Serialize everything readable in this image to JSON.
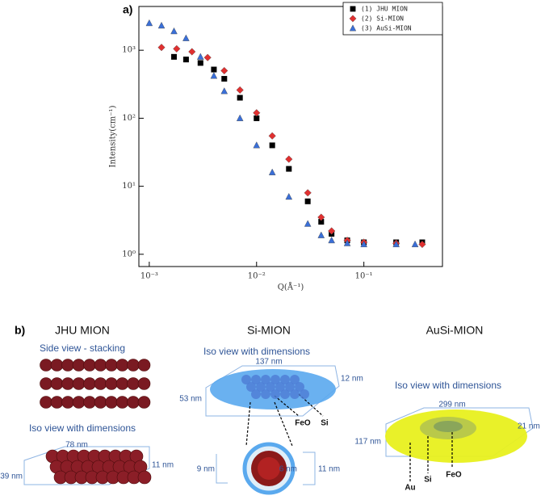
{
  "panel_labels": [
    "a)",
    "b)"
  ],
  "chart_data": {
    "type": "scatter",
    "xlabel": "Q(Å⁻¹)",
    "ylabel": "Intensity(cm⁻¹)",
    "xscale": "log",
    "yscale": "log",
    "xlim": [
      0.0008,
      0.54
    ],
    "ylim": [
      0.66,
      4400
    ],
    "xticks": [
      {
        "value": 0.001,
        "label": "10⁻³"
      },
      {
        "value": 0.01,
        "label": "10⁻²"
      },
      {
        "value": 0.1,
        "label": "10⁻¹"
      }
    ],
    "yticks": [
      {
        "value": 1,
        "label": "10⁰"
      },
      {
        "value": 10,
        "label": "10¹"
      },
      {
        "value": 100,
        "label": "10²"
      },
      {
        "value": 1000,
        "label": "10³"
      }
    ],
    "legend": "upper right",
    "series": [
      {
        "name": "(1) JHU MION",
        "color": "#000000",
        "marker": "square",
        "x": [
          0.0017,
          0.0022,
          0.003,
          0.004,
          0.005,
          0.007,
          0.01,
          0.014,
          0.02,
          0.03,
          0.04,
          0.05,
          0.07,
          0.1,
          0.2,
          0.35
        ],
        "values": [
          800,
          730,
          650,
          520,
          380,
          200,
          100,
          40,
          18,
          6,
          3,
          2,
          1.6,
          1.5,
          1.5,
          1.5
        ]
      },
      {
        "name": "(2) Si-MION",
        "color": "#e03030",
        "marker": "diamond",
        "x": [
          0.0013,
          0.0018,
          0.0025,
          0.0035,
          0.005,
          0.007,
          0.01,
          0.014,
          0.02,
          0.03,
          0.04,
          0.05,
          0.07,
          0.1,
          0.2,
          0.35
        ],
        "values": [
          1100,
          1050,
          950,
          780,
          500,
          260,
          120,
          55,
          25,
          8,
          3.5,
          2.2,
          1.6,
          1.5,
          1.45,
          1.4
        ]
      },
      {
        "name": "(3) AuSi-MION",
        "color": "#3a6fd8",
        "marker": "triangle",
        "x": [
          0.001,
          0.0013,
          0.0017,
          0.0022,
          0.003,
          0.004,
          0.005,
          0.007,
          0.01,
          0.014,
          0.02,
          0.03,
          0.04,
          0.05,
          0.07,
          0.1,
          0.2,
          0.3
        ],
        "values": [
          2500,
          2300,
          1900,
          1500,
          800,
          420,
          250,
          100,
          40,
          16,
          7,
          2.8,
          1.9,
          1.6,
          1.45,
          1.4,
          1.4,
          1.4
        ]
      }
    ]
  },
  "diagrams": [
    {
      "title": "JHU MION",
      "side_view": "Side view - stacking",
      "iso_view": "Iso view with dimensions",
      "dimensions": [
        "78 nm",
        "11 nm",
        "39 nm"
      ]
    },
    {
      "title": "Si-MION",
      "iso_view": "Iso view with dimensions",
      "dimensions": [
        "137 nm",
        "12 nm",
        "53 nm",
        "9 nm",
        "6 nm",
        "11 nm"
      ],
      "components": [
        "FeO",
        "Si"
      ]
    },
    {
      "title": "AuSi-MION",
      "iso_view": "Iso view with dimensions",
      "dimensions": [
        "299 nm",
        "21 nm",
        "117 nm"
      ],
      "components": [
        "Au",
        "Si",
        "FeO"
      ]
    }
  ]
}
